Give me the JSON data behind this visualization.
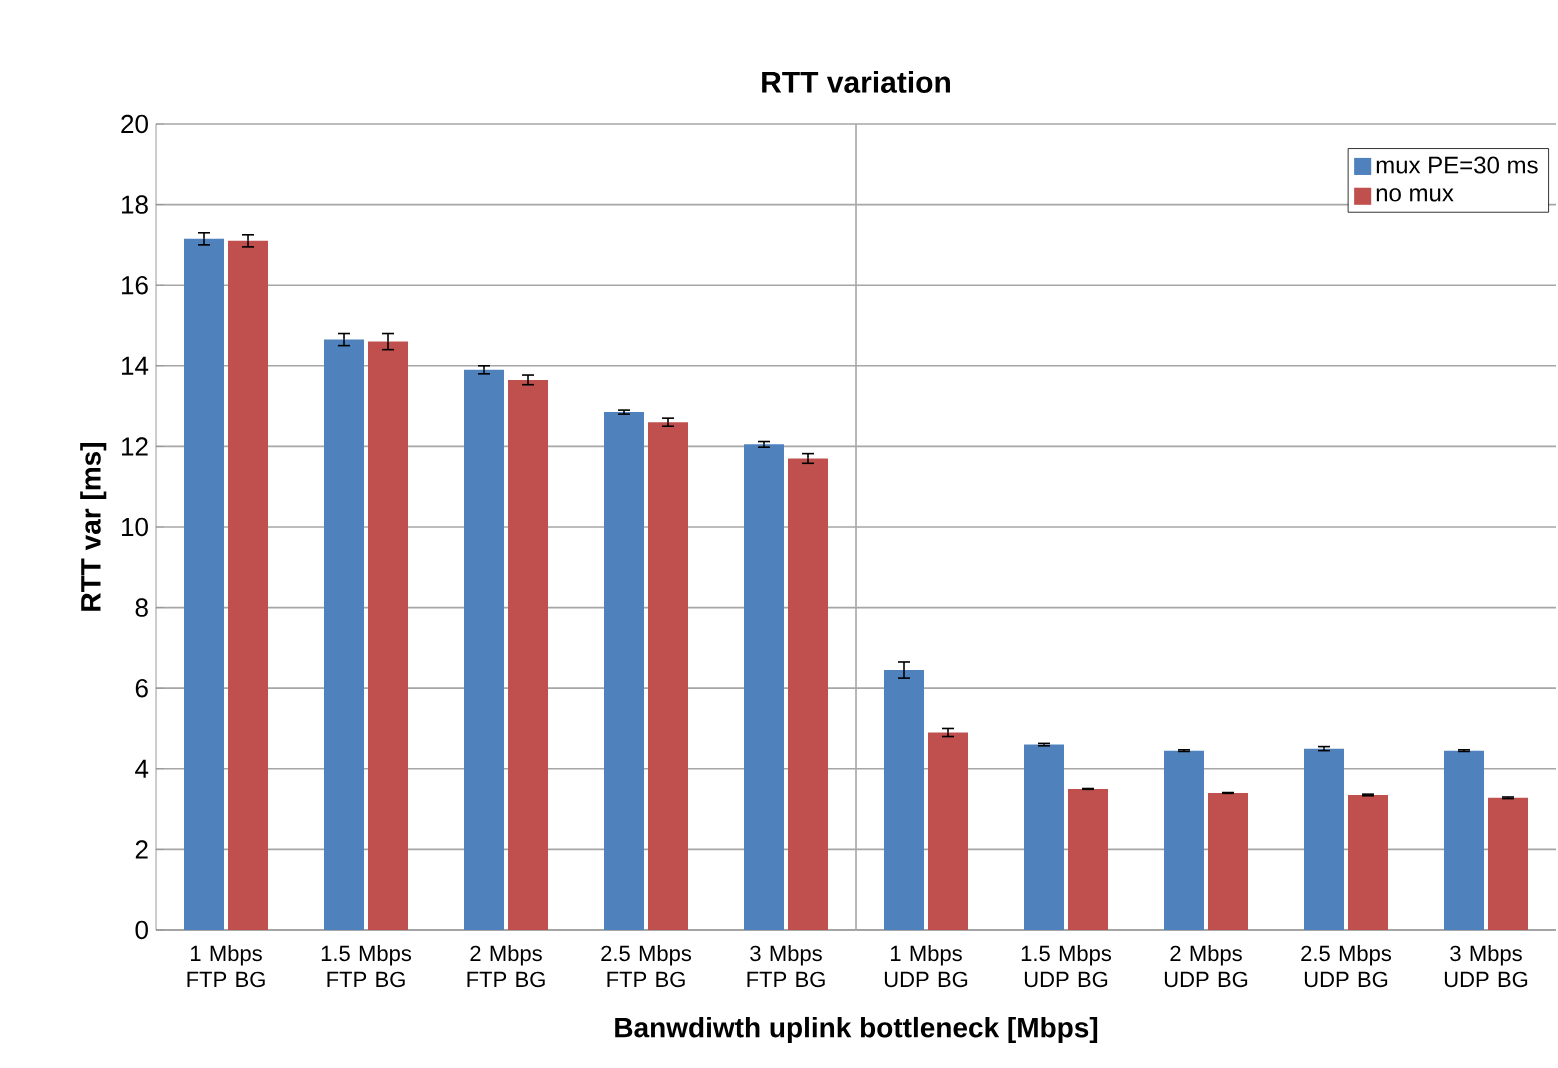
{
  "chart_data": {
    "type": "bar",
    "title": "RTT variation",
    "xlabel": "Banwdiwth uplink bottleneck [Mbps]",
    "ylabel": "RTT var [ms]",
    "categories": [
      "1 Mbps FTP BG",
      "1.5 Mbps FTP BG",
      "2 Mbps FTP BG",
      "2.5 Mbps FTP BG",
      "3 Mbps FTP BG",
      "1 Mbps UDP BG",
      "1.5 Mbps UDP BG",
      "2 Mbps UDP BG",
      "2.5 Mbps UDP BG",
      "3 Mbps UDP BG"
    ],
    "series": [
      {
        "name": "mux PE=30 ms",
        "color": "#4f81bd",
        "values": [
          17.15,
          14.65,
          13.9,
          12.85,
          12.05,
          6.45,
          4.6,
          4.45,
          4.5,
          4.45
        ],
        "errors": [
          0.15,
          0.15,
          0.1,
          0.05,
          0.07,
          0.2,
          0.03,
          0.02,
          0.05,
          0.02
        ]
      },
      {
        "name": "no mux",
        "color": "#c0504d",
        "values": [
          17.1,
          14.6,
          13.65,
          12.6,
          11.7,
          4.9,
          3.5,
          3.4,
          3.35,
          3.28
        ],
        "errors": [
          0.15,
          0.2,
          0.12,
          0.1,
          0.12,
          0.1,
          0.01,
          0.01,
          0.02,
          0.02
        ]
      }
    ],
    "ylim": [
      0,
      20
    ],
    "yticks": [
      0,
      2,
      4,
      6,
      8,
      10,
      12,
      14,
      16,
      18,
      20
    ],
    "grid": "y",
    "legend": "top right"
  }
}
